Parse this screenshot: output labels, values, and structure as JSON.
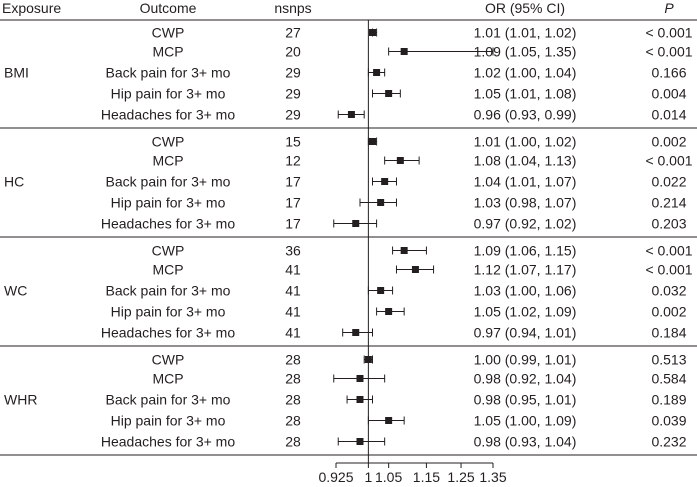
{
  "chart_data": {
    "type": "forest",
    "columns": {
      "exposure": "Exposure",
      "outcome": "Outcome",
      "nsnps": "nsnps",
      "or": "OR (95% CI)",
      "p": "P"
    },
    "reference_value": 1,
    "x_scale": "log",
    "x_ticks": [
      0.925,
      1,
      1.05,
      1.15,
      1.25,
      1.35
    ],
    "x_tick_labels": [
      "0.925",
      "1",
      "1.05",
      "1.15",
      "1.25",
      "1.35"
    ],
    "groups": [
      {
        "exposure": "BMI",
        "rows": [
          {
            "outcome": "CWP",
            "nsnps": "27",
            "or": 1.01,
            "lo": 1.01,
            "hi": 1.02,
            "or_text": "1.01 (1.01, 1.02)",
            "p": "< 0.001"
          },
          {
            "outcome": "MCP",
            "nsnps": "20",
            "or": 1.09,
            "lo": 1.05,
            "hi": 1.35,
            "or_text": "1.09 (1.05, 1.35)",
            "p": "< 0.001"
          },
          {
            "outcome": "Back pain for 3+ mo",
            "nsnps": "29",
            "or": 1.02,
            "lo": 1.0,
            "hi": 1.04,
            "or_text": "1.02 (1.00, 1.04)",
            "p": "0.166"
          },
          {
            "outcome": "Hip pain for 3+ mo",
            "nsnps": "29",
            "or": 1.05,
            "lo": 1.01,
            "hi": 1.08,
            "or_text": "1.05 (1.01, 1.08)",
            "p": "0.004"
          },
          {
            "outcome": "Headaches for 3+ mo",
            "nsnps": "29",
            "or": 0.96,
            "lo": 0.93,
            "hi": 0.99,
            "or_text": "0.96 (0.93, 0.99)",
            "p": "0.014"
          }
        ]
      },
      {
        "exposure": "HC",
        "rows": [
          {
            "outcome": "CWP",
            "nsnps": "15",
            "or": 1.01,
            "lo": 1.0,
            "hi": 1.02,
            "or_text": "1.01 (1.00, 1.02)",
            "p": "0.002"
          },
          {
            "outcome": "MCP",
            "nsnps": "12",
            "or": 1.08,
            "lo": 1.04,
            "hi": 1.13,
            "or_text": "1.08 (1.04, 1.13)",
            "p": "< 0.001"
          },
          {
            "outcome": "Back pain for 3+ mo",
            "nsnps": "17",
            "or": 1.04,
            "lo": 1.01,
            "hi": 1.07,
            "or_text": "1.04 (1.01, 1.07)",
            "p": "0.022"
          },
          {
            "outcome": "Hip pain for 3+ mo",
            "nsnps": "17",
            "or": 1.03,
            "lo": 0.98,
            "hi": 1.07,
            "or_text": "1.03 (0.98, 1.07)",
            "p": "0.214"
          },
          {
            "outcome": "Headaches for 3+ mo",
            "nsnps": "17",
            "or": 0.97,
            "lo": 0.92,
            "hi": 1.02,
            "or_text": "0.97 (0.92, 1.02)",
            "p": "0.203"
          }
        ]
      },
      {
        "exposure": "WC",
        "rows": [
          {
            "outcome": "CWP",
            "nsnps": "36",
            "or": 1.09,
            "lo": 1.06,
            "hi": 1.15,
            "or_text": "1.09 (1.06, 1.15)",
            "p": "< 0.001"
          },
          {
            "outcome": "MCP",
            "nsnps": "41",
            "or": 1.12,
            "lo": 1.07,
            "hi": 1.17,
            "or_text": "1.12 (1.07, 1.17)",
            "p": "< 0.001"
          },
          {
            "outcome": "Back pain for 3+ mo",
            "nsnps": "41",
            "or": 1.03,
            "lo": 1.0,
            "hi": 1.06,
            "or_text": "1.03 (1.00, 1.06)",
            "p": "0.032"
          },
          {
            "outcome": "Hip pain for 3+ mo",
            "nsnps": "41",
            "or": 1.05,
            "lo": 1.02,
            "hi": 1.09,
            "or_text": "1.05 (1.02, 1.09)",
            "p": "0.002"
          },
          {
            "outcome": "Headaches for 3+ mo",
            "nsnps": "41",
            "or": 0.97,
            "lo": 0.94,
            "hi": 1.01,
            "or_text": "0.97 (0.94, 1.01)",
            "p": "0.184"
          }
        ]
      },
      {
        "exposure": "WHR",
        "rows": [
          {
            "outcome": "CWP",
            "nsnps": "28",
            "or": 1.0,
            "lo": 0.99,
            "hi": 1.01,
            "or_text": "1.00 (0.99, 1.01)",
            "p": "0.513"
          },
          {
            "outcome": "MCP",
            "nsnps": "28",
            "or": 0.98,
            "lo": 0.92,
            "hi": 1.04,
            "or_text": "0.98 (0.92, 1.04)",
            "p": "0.584"
          },
          {
            "outcome": "Back pain for 3+ mo",
            "nsnps": "28",
            "or": 0.98,
            "lo": 0.95,
            "hi": 1.01,
            "or_text": "0.98 (0.95, 1.01)",
            "p": "0.189"
          },
          {
            "outcome": "Hip pain for 3+ mo",
            "nsnps": "28",
            "or": 1.05,
            "lo": 1.0,
            "hi": 1.09,
            "or_text": "1.05 (1.00, 1.09)",
            "p": "0.039"
          },
          {
            "outcome": "Headaches for 3+ mo",
            "nsnps": "28",
            "or": 0.98,
            "lo": 0.93,
            "hi": 1.04,
            "or_text": "0.98 (0.93, 1.04)",
            "p": "0.232"
          }
        ]
      }
    ]
  }
}
